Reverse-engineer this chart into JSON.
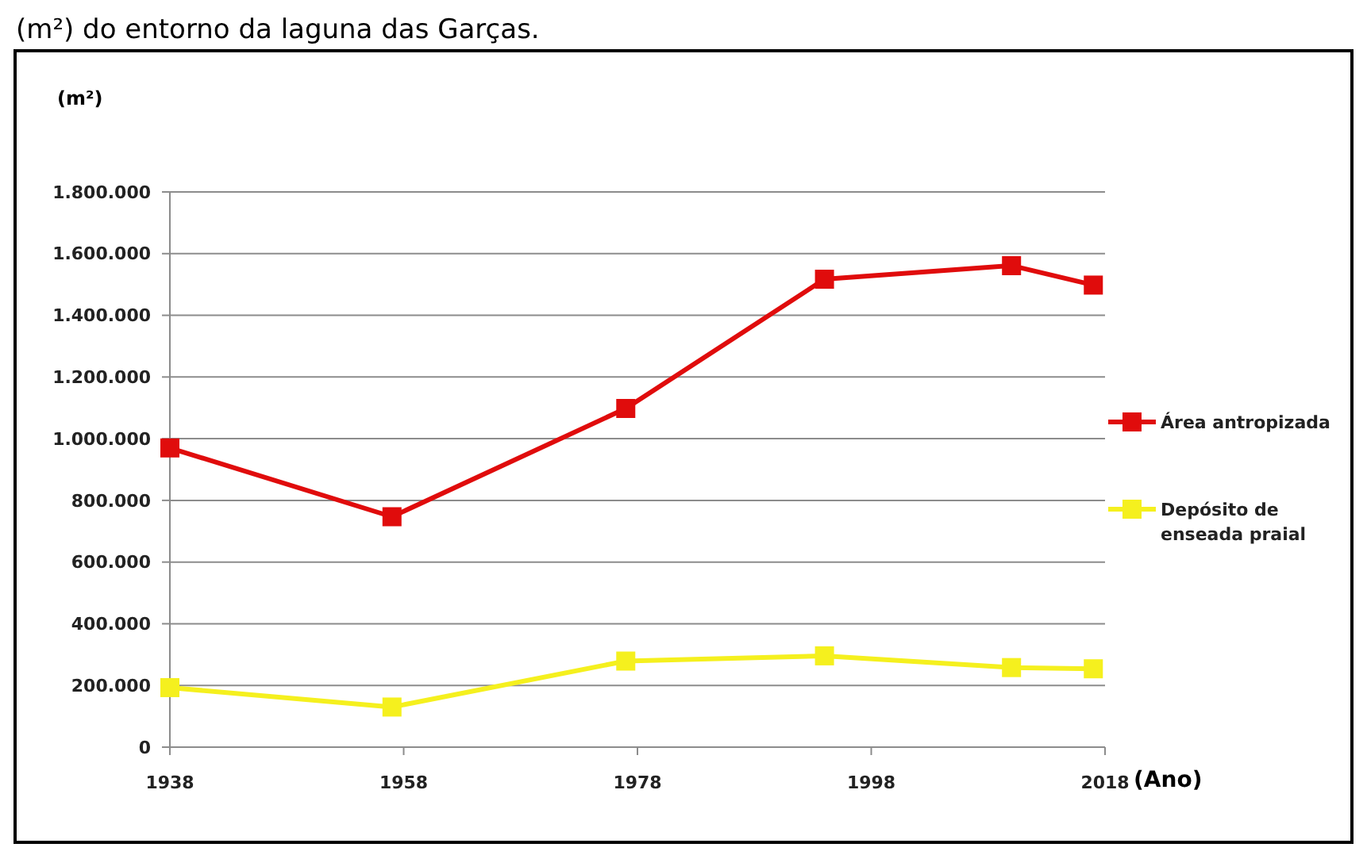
{
  "chart_data": {
    "type": "line",
    "ylabel": "(m²)",
    "xlabel": "(Ano)",
    "annotations": [
      "(m²) do entorno da laguna das Garças."
    ],
    "x": [
      1938,
      1957,
      1977,
      1994,
      2010,
      2017
    ],
    "series": [
      {
        "name": "Área antropizada",
        "color": "#e00c0c",
        "values": [
          970000,
          747000,
          1098000,
          1517000,
          1561000,
          1498000
        ]
      },
      {
        "name": "Depósito de enseada praial",
        "color": "#f5f01e",
        "values": [
          193000,
          130000,
          279000,
          296000,
          258000,
          254000
        ]
      }
    ],
    "xlim": [
      1938,
      2018
    ],
    "xticks": [
      1938,
      1958,
      1978,
      1998,
      2018
    ],
    "ylim": [
      0,
      1800000
    ],
    "yticks": [
      0,
      {
        "value": 200000,
        "label": "200.000"
      },
      {
        "value": 400000,
        "label": "400.000"
      },
      {
        "value": 600000,
        "label": "600.000"
      },
      {
        "value": 800000,
        "label": "800.000"
      },
      {
        "value": 1000000,
        "label": "1.000.000"
      },
      {
        "value": 1200000,
        "label": "1.200.000"
      },
      {
        "value": 1400000,
        "label": "1.400.000"
      },
      {
        "value": 1600000,
        "label": "1.600.000"
      },
      {
        "value": 1800000,
        "label": "1.800.000"
      }
    ],
    "grid": "y",
    "legend": "right",
    "marker": "square",
    "line_style": "solid"
  }
}
